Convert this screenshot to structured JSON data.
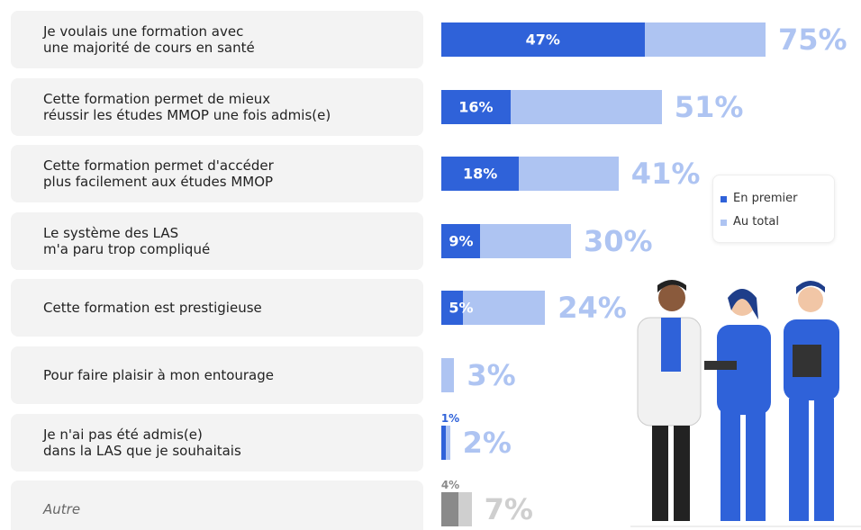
{
  "chart_data": {
    "type": "bar",
    "categories": [
      "Je voulais une formation avec\nune majorité de cours en santé",
      "Cette formation permet de mieux\nréussir les études MMOP une fois admis(e)",
      "Cette formation permet d'accéder\nplus facilement aux études MMOP",
      "Le système des LAS\nm'a paru trop compliqué",
      "Cette formation est prestigieuse",
      "Pour faire plaisir à mon entourage",
      "Je n'ai pas été admis(e)\ndans la LAS que je souhaitais",
      "Autre"
    ],
    "series": [
      {
        "name": "Au total",
        "color": "#aec4f2",
        "colors": [
          "#aec4f2",
          "#aec4f2",
          "#aec4f2",
          "#aec4f2",
          "#aec4f2",
          "#aec4f2",
          "#aec4f2",
          "#cfcfcf"
        ],
        "values": [
          75,
          51,
          41,
          30,
          24,
          3,
          2,
          7
        ],
        "value_labels": [
          "75%",
          "51%",
          "41%",
          "30%",
          "24%",
          "3%",
          "2%",
          "7%"
        ]
      },
      {
        "name": "En premier",
        "color": "#2f62d9",
        "colors": [
          "#2f62d9",
          "#2f62d9",
          "#2f62d9",
          "#2f62d9",
          "#2f62d9",
          "#2f62d9",
          "#2f62d9",
          "#8a8a8a"
        ],
        "values": [
          47,
          16,
          18,
          9,
          5,
          null,
          1,
          4
        ],
        "value_labels": [
          "47%",
          "16%",
          "18%",
          "9%",
          "5%",
          null,
          "1%",
          "4%"
        ]
      }
    ],
    "xlim": [
      0,
      75
    ]
  }
}
